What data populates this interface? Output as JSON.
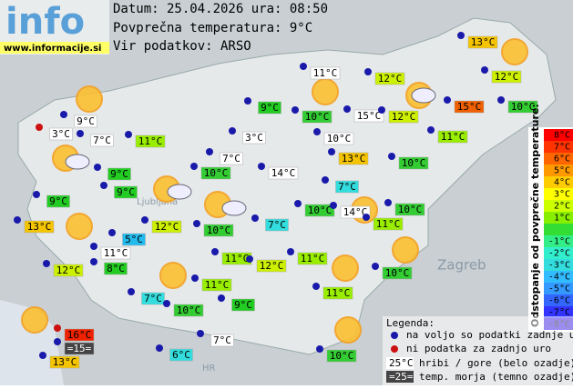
{
  "header": {
    "logo": "info",
    "url": "www.informacije.si",
    "date": "Datum: 25.04.2026 ura: 08:50",
    "avg": "Povprečna temperatura: 9°C",
    "source": "Vir podatkov: ARSO"
  },
  "map_labels": [
    "Ljubljana",
    "Zagreb",
    "HR"
  ],
  "stations": [
    {
      "label": "13°C",
      "color": "#f5c400"
    },
    {
      "label": "12°C",
      "color": "#ccf000"
    },
    {
      "label": "11°C",
      "color": "#ffffff"
    },
    {
      "label": "12°C",
      "color": "#ccf000"
    },
    {
      "label": "9°C",
      "color": "#22cc22"
    },
    {
      "label": "10°C",
      "color": "#33cc33"
    },
    {
      "label": "15°C",
      "color": "#ffffff"
    },
    {
      "label": "12°C",
      "color": "#ccf000"
    },
    {
      "label": "15°C",
      "color": "#f06000"
    },
    {
      "label": "10°C",
      "color": "#33cc33"
    },
    {
      "label": "9°C",
      "color": "#ffffff"
    },
    {
      "label": "3°C",
      "color": "#ffffff"
    },
    {
      "label": "7°C",
      "color": "#ffffff"
    },
    {
      "label": "11°C",
      "color": "#99ee00"
    },
    {
      "label": "3°C",
      "color": "#ffffff"
    },
    {
      "label": "10°C",
      "color": "#ffffff"
    },
    {
      "label": "11°C",
      "color": "#99ee00"
    },
    {
      "label": "13°C",
      "color": "#f5c400"
    },
    {
      "label": "7°C",
      "color": "#ffffff"
    },
    {
      "label": "9°C",
      "color": "#22cc22"
    },
    {
      "label": "10°C",
      "color": "#33cc33"
    },
    {
      "label": "14°C",
      "color": "#ffffff"
    },
    {
      "label": "10°C",
      "color": "#33cc33"
    },
    {
      "label": "7°C",
      "color": "#33dddd"
    },
    {
      "label": "9°C",
      "color": "#22cc22"
    },
    {
      "label": "9°C",
      "color": "#22cc22"
    },
    {
      "label": "10°C",
      "color": "#33cc33"
    },
    {
      "label": "14°C",
      "color": "#ffffff"
    },
    {
      "label": "10°C",
      "color": "#33cc33"
    },
    {
      "label": "13°C",
      "color": "#f5c400"
    },
    {
      "label": "12°C",
      "color": "#ccf000"
    },
    {
      "label": "7°C",
      "color": "#33dddd"
    },
    {
      "label": "10°C",
      "color": "#33cc33"
    },
    {
      "label": "11°C",
      "color": "#99ee00"
    },
    {
      "label": "5°C",
      "color": "#22bbee"
    },
    {
      "label": "11°C",
      "color": "#ffffff"
    },
    {
      "label": "11°C",
      "color": "#99ee00"
    },
    {
      "label": "12°C",
      "color": "#ccf000"
    },
    {
      "label": "11°C",
      "color": "#99ee00"
    },
    {
      "label": "12°C",
      "color": "#ccf000"
    },
    {
      "label": "8°C",
      "color": "#22cc22"
    },
    {
      "label": "10°C",
      "color": "#33cc33"
    },
    {
      "label": "11°C",
      "color": "#99ee00"
    },
    {
      "label": "7°C",
      "color": "#33dddd"
    },
    {
      "label": "11°C",
      "color": "#99ee00"
    },
    {
      "label": "10°C",
      "color": "#33cc33"
    },
    {
      "label": "9°C",
      "color": "#22cc22"
    },
    {
      "label": "16°C",
      "color": "#ee2200"
    },
    {
      "label": "=15=",
      "color": "#444444"
    },
    {
      "label": "7°C",
      "color": "#ffffff"
    },
    {
      "label": "6°C",
      "color": "#33dddd"
    },
    {
      "label": "13°C",
      "color": "#f5c400"
    },
    {
      "label": "10°C",
      "color": "#33cc33"
    }
  ],
  "scale": {
    "title": "Odstopanje od povprečne temperature:",
    "items": [
      {
        "label": "8°C",
        "color": "#ff0000"
      },
      {
        "label": "7°C",
        "color": "#ff3300"
      },
      {
        "label": "6°C",
        "color": "#ff6600"
      },
      {
        "label": "5°C",
        "color": "#ff9900"
      },
      {
        "label": "4°C",
        "color": "#ffcc00"
      },
      {
        "label": "3°C",
        "color": "#ffff00"
      },
      {
        "label": "2°C",
        "color": "#ccff00"
      },
      {
        "label": "1°C",
        "color": "#88ee00"
      },
      {
        "label": null,
        "color": "#33dd33"
      },
      {
        "label": "-1°C",
        "color": "#33ee88"
      },
      {
        "label": "-2°C",
        "color": "#33eecc"
      },
      {
        "label": "-3°C",
        "color": "#33dddd"
      },
      {
        "label": "-4°C",
        "color": "#33bbff"
      },
      {
        "label": "-5°C",
        "color": "#3399ff"
      },
      {
        "label": "-6°C",
        "color": "#3366ff"
      },
      {
        "label": "-7°C",
        "color": "#3333ff"
      },
      {
        "label": "-8°C",
        "color": "#2200dd"
      }
    ]
  },
  "legend": {
    "title": "Legenda:",
    "available": "na voljo so podatki zadnje ure",
    "missing": "ni podatka za zadnjo uro",
    "mountain_sample": "25°C",
    "mountain": "hribi / gore (belo ozadje)",
    "sea_sample": "=25=",
    "sea": "temp. morja (temno ozadje)"
  }
}
